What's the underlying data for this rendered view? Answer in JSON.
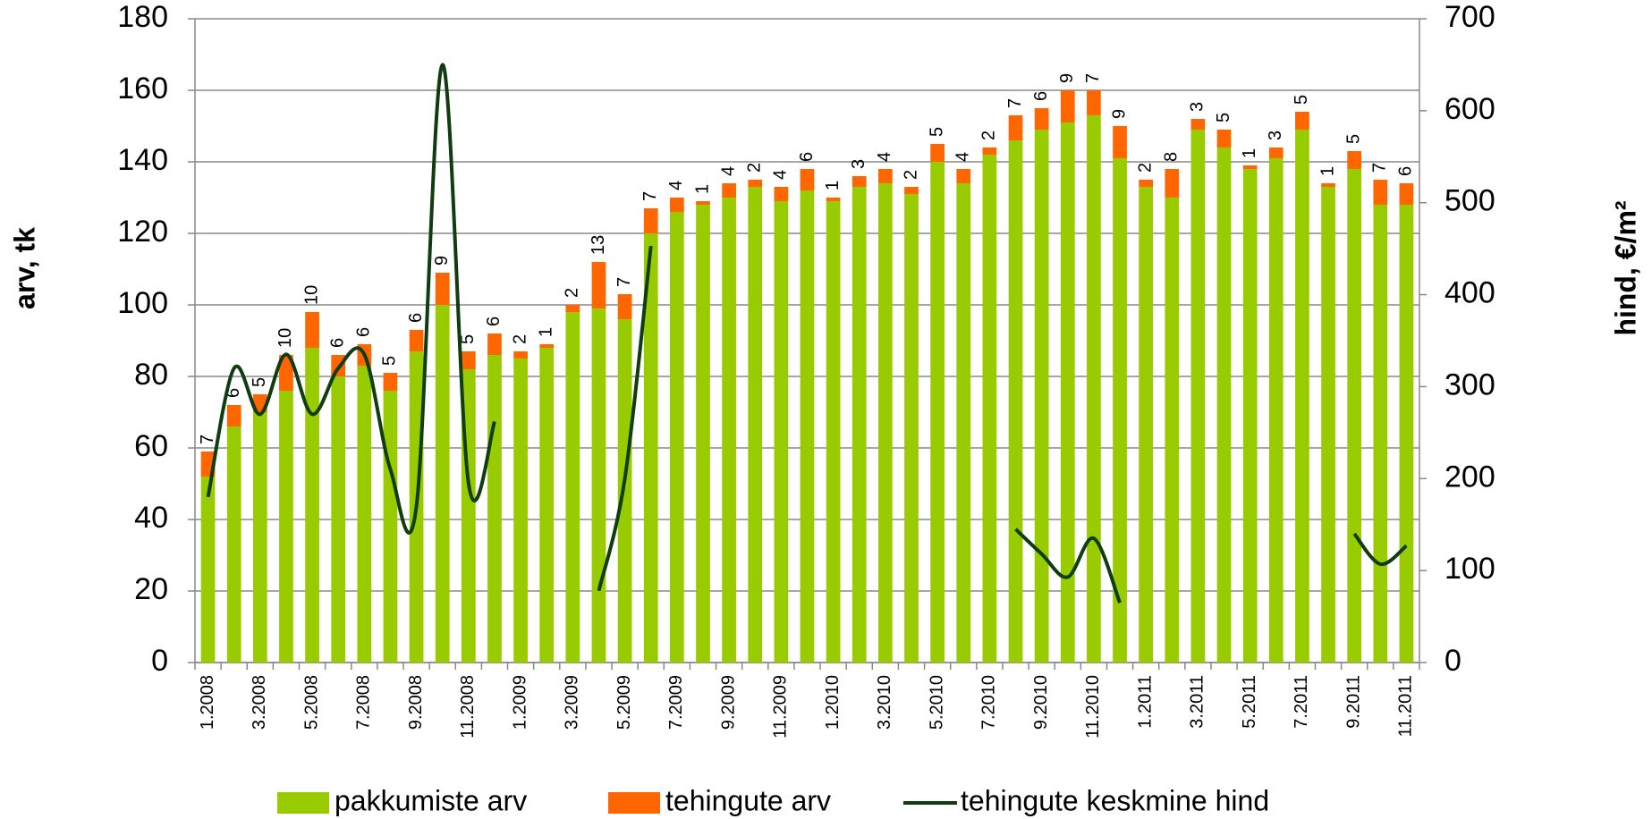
{
  "chart_data": {
    "type": "bar",
    "categories": [
      "1.2008",
      null,
      "3.2008",
      null,
      "5.2008",
      null,
      "7.2008",
      null,
      "9.2008",
      null,
      "11.2008",
      null,
      "1.2009",
      null,
      "3.2009",
      null,
      "5.2009",
      null,
      "7.2009",
      null,
      "9.2009",
      null,
      "11.2009",
      null,
      "1.2010",
      null,
      "3.2010",
      null,
      "5.2010",
      null,
      "7.2010",
      null,
      "9.2010",
      null,
      "11.2010",
      null,
      "1.2011",
      null,
      "3.2011",
      null,
      "5.2011",
      null,
      "7.2011",
      null,
      "9.2011",
      null,
      "11.2011"
    ],
    "series": [
      {
        "name": "pakkumiste arv",
        "color": "#99cc00",
        "values": [
          52,
          66,
          70,
          76,
          88,
          80,
          83,
          76,
          87,
          100,
          82,
          86,
          85,
          88,
          98,
          99,
          96,
          120,
          126,
          128,
          130,
          133,
          129,
          132,
          129,
          133,
          134,
          131,
          140,
          134,
          142,
          146,
          149,
          151,
          153,
          141,
          133,
          130,
          149,
          144,
          138,
          141,
          149,
          133,
          138,
          128,
          128
        ]
      },
      {
        "name": "tehingute arv",
        "color": "#ff6600",
        "values": [
          7,
          6,
          5,
          10,
          10,
          6,
          6,
          5,
          6,
          9,
          5,
          6,
          2,
          1,
          2,
          13,
          7,
          7,
          4,
          1,
          4,
          2,
          4,
          6,
          1,
          3,
          4,
          2,
          5,
          4,
          2,
          7,
          6,
          9,
          7,
          9,
          2,
          8,
          3,
          5,
          1,
          3,
          5,
          1,
          5,
          7,
          6
        ]
      },
      {
        "name": "tehingute keskmine hind",
        "color": "#0f3d0f",
        "type": "line",
        "axis": "y2",
        "values": [
          180,
          320,
          270,
          335,
          270,
          320,
          335,
          210,
          170,
          650,
          195,
          262,
          null,
          null,
          null,
          78,
          200,
          453,
          null,
          null,
          null,
          null,
          null,
          null,
          null,
          null,
          null,
          null,
          null,
          null,
          null,
          145,
          118,
          93,
          135,
          65,
          null,
          null,
          null,
          null,
          null,
          null,
          null,
          null,
          140,
          107,
          127
        ]
      }
    ],
    "ylabel": "arv, tk",
    "y2label": "hind, €/m²",
    "ylim": [
      0,
      180
    ],
    "yticks": [
      0,
      20,
      40,
      60,
      80,
      100,
      120,
      140,
      160,
      180
    ],
    "y2lim": [
      0,
      700
    ],
    "y2ticks": [
      0,
      100,
      200,
      300,
      400,
      500,
      600,
      700
    ],
    "grid": true,
    "stacked": true,
    "legend": "bottom"
  }
}
